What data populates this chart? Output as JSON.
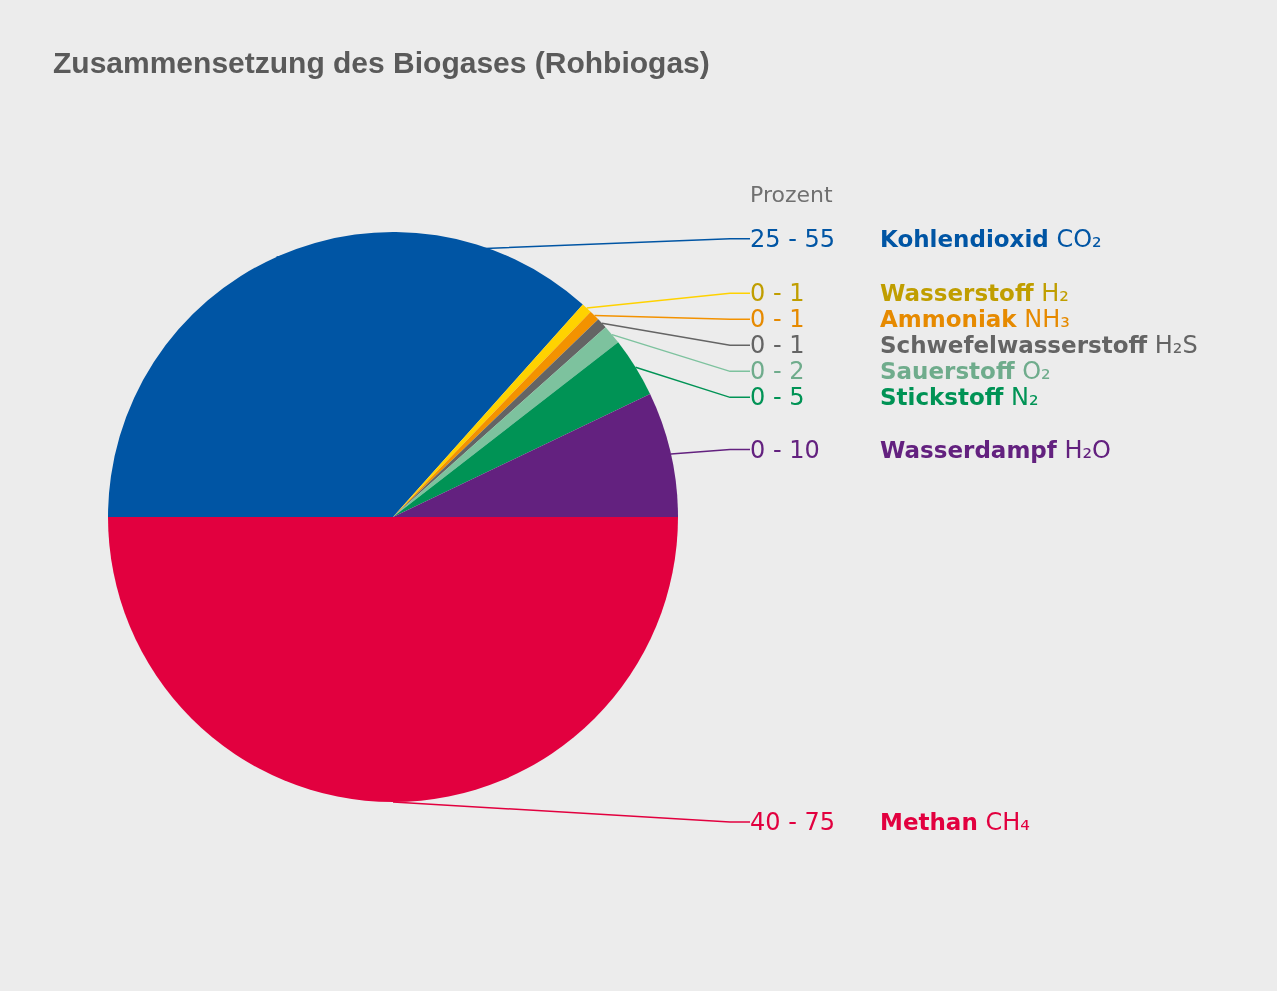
{
  "chart_data": {
    "type": "pie",
    "title": "Zusammensetzung des Biogases (Rohbiogas)",
    "legend_title": "Prozent",
    "categories": [
      "25 - 55 Kohlendioxid CO₂",
      "0 - 1 Wasserstoff H₂",
      "0 - 1 Ammoniak NH₃",
      "0 - 1 Schwefelwasserstoff H₂S",
      "0 - 2 Sauerstoff O₂",
      "0 - 5 Stickstoff N₂",
      "0 - 10 Wasserdampf H₂O",
      "40 - 75 Methan CH₄"
    ],
    "values": [
      36.6,
      0.6,
      0.6,
      0.6,
      1.1,
      3.4,
      7.1,
      50
    ],
    "colors": [
      "#0055a4",
      "#ffd200",
      "#f39200",
      "#646464",
      "#7dc29e",
      "#009355",
      "#63217f",
      "#e2003f"
    ]
  }
}
